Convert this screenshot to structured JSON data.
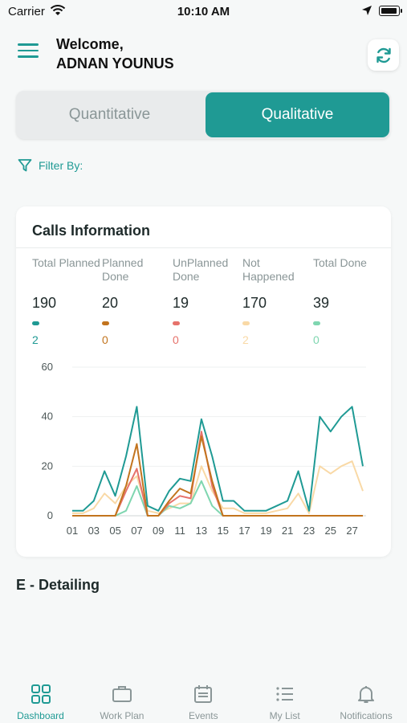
{
  "status_bar": {
    "carrier": "Carrier",
    "time": "10:10 AM"
  },
  "header": {
    "greeting": "Welcome,",
    "user_name": "ADNAN YOUNUS"
  },
  "segment": {
    "options": [
      "Quantitative",
      "Qualitative"
    ],
    "selected": "Qualitative"
  },
  "filter": {
    "label": "Filter By:"
  },
  "calls_card": {
    "title": "Calls Information",
    "stats": [
      {
        "label": "Total Planned",
        "value": "190",
        "sub": "2",
        "color": "#1f9a94"
      },
      {
        "label": "Planned Done",
        "value": "20",
        "sub": "0",
        "color": "#c2741e"
      },
      {
        "label": "UnPlanned Done",
        "value": "19",
        "sub": "0",
        "color": "#e6726b"
      },
      {
        "label": "Not Happened",
        "value": "170",
        "sub": "2",
        "color": "#f9d9a6"
      },
      {
        "label": "Total Done",
        "value": "39",
        "sub": "0",
        "color": "#7fd6b0"
      }
    ]
  },
  "chart_data": {
    "type": "line",
    "ylim": [
      0,
      60
    ],
    "y_ticks": [
      "0",
      "20",
      "40",
      "60"
    ],
    "x_ticks": [
      "01",
      "03",
      "05",
      "07",
      "09",
      "11",
      "13",
      "15",
      "17",
      "19",
      "21",
      "23",
      "25",
      "27"
    ],
    "x": [
      1,
      2,
      3,
      4,
      5,
      6,
      7,
      8,
      9,
      10,
      11,
      12,
      13,
      14,
      15,
      16,
      17,
      18,
      19,
      20,
      21,
      22,
      23,
      24,
      25,
      26,
      27,
      28
    ],
    "grid": true,
    "series": [
      {
        "color": "#1f9a94",
        "values": [
          2,
          2,
          6,
          18,
          8,
          24,
          44,
          4,
          2,
          10,
          15,
          14,
          39,
          24,
          6,
          6,
          2,
          2,
          2,
          4,
          6,
          18,
          2,
          40,
          34,
          40,
          44,
          20
        ]
      },
      {
        "color": "#f9d9a6",
        "values": [
          1,
          1,
          3,
          9,
          5,
          12,
          16,
          2,
          1,
          3,
          5,
          5,
          20,
          10,
          3,
          3,
          1,
          1,
          1,
          2,
          3,
          9,
          1,
          20,
          17,
          20,
          22,
          10
        ]
      },
      {
        "color": "#c2741e",
        "values": [
          0,
          0,
          0,
          0,
          0,
          12,
          29,
          0,
          0,
          6,
          11,
          9,
          32,
          14,
          0,
          0,
          0,
          0,
          0,
          0,
          0,
          0,
          0,
          0,
          0,
          0,
          0,
          0
        ]
      },
      {
        "color": "#e6726b",
        "values": [
          0,
          0,
          0,
          0,
          0,
          10,
          19,
          0,
          0,
          5,
          8,
          7,
          34,
          12,
          0,
          0,
          0,
          0,
          0,
          0,
          0,
          0,
          0,
          0,
          0,
          0,
          0,
          0
        ]
      },
      {
        "color": "#7fd6b0",
        "values": [
          0,
          0,
          0,
          0,
          0,
          2,
          12,
          0,
          0,
          4,
          3,
          5,
          14,
          4,
          0,
          0,
          0,
          0,
          0,
          0,
          0,
          0,
          0,
          0,
          0,
          0,
          0,
          0
        ]
      }
    ]
  },
  "section": {
    "title": "E - Detailing"
  },
  "tab_bar": {
    "items": [
      {
        "label": "Dashboard",
        "icon": "grid-icon"
      },
      {
        "label": "Work Plan",
        "icon": "briefcase-icon"
      },
      {
        "label": "Events",
        "icon": "calendar-icon"
      },
      {
        "label": "My List",
        "icon": "list-icon"
      },
      {
        "label": "Notifications",
        "icon": "bell-icon"
      }
    ],
    "active": "Dashboard",
    "active_color": "#1f9a94",
    "inactive_color": "#8a9697"
  }
}
